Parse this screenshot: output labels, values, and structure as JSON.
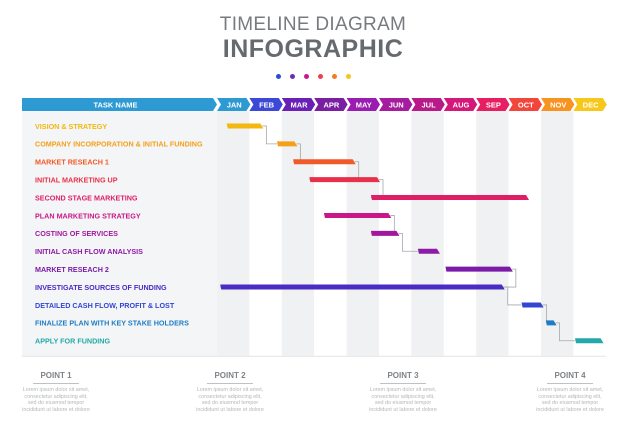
{
  "header": {
    "title_line1": "TIMELINE DIAGRAM",
    "title_line2": "INFOGRAPHIC",
    "dot_colors": [
      "#2f4bd6",
      "#6a2fb3",
      "#c31a8e",
      "#ee3e52",
      "#f17a2b",
      "#f5c51a"
    ]
  },
  "table": {
    "task_header": "TASK NAME",
    "header_color": "#2e9ad4",
    "months": [
      {
        "label": "JAN",
        "color": "#2e9ad4"
      },
      {
        "label": "FEB",
        "color": "#3b49d6"
      },
      {
        "label": "MAR",
        "color": "#6a1fb5"
      },
      {
        "label": "APR",
        "color": "#7b1fa2"
      },
      {
        "label": "MAY",
        "color": "#9a1cb0"
      },
      {
        "label": "JUN",
        "color": "#a51d9e"
      },
      {
        "label": "JUL",
        "color": "#b81a8a"
      },
      {
        "label": "AUG",
        "color": "#d4177a"
      },
      {
        "label": "SEP",
        "color": "#e81e63"
      },
      {
        "label": "OCT",
        "color": "#f2463d"
      },
      {
        "label": "NOV",
        "color": "#f79421"
      },
      {
        "label": "DEC",
        "color": "#f7c81b"
      }
    ],
    "tasks": [
      {
        "label": "VISION & STRATEGY",
        "color": "#f2b80f",
        "start": 1.3,
        "end": 2.4
      },
      {
        "label": "COMPANY INCORPORATION & INITIAL FUNDING",
        "color": "#f5a01a",
        "start": 2.85,
        "end": 3.45
      },
      {
        "label": "MARKET RESEACH 1",
        "color": "#f05a28",
        "start": 3.35,
        "end": 5.25
      },
      {
        "label": "INITIAL MARKETING UP",
        "color": "#e8304b",
        "start": 3.85,
        "end": 6.0
      },
      {
        "label": "SECOND STAGE MARKETING",
        "color": "#de1f66",
        "start": 5.75,
        "end": 10.6
      },
      {
        "label": "PLAN MARKETING STRATEGY",
        "color": "#c9178a",
        "start": 4.3,
        "end": 6.35
      },
      {
        "label": "COSTING OF SERVICES",
        "color": "#a3179e",
        "start": 5.75,
        "end": 6.6
      },
      {
        "label": "INITIAL CASH FLOW ANALYSIS",
        "color": "#8d1aa8",
        "start": 7.2,
        "end": 7.85
      },
      {
        "label": "MARKET RESEACH 2",
        "color": "#7a1ca8",
        "start": 8.05,
        "end": 10.1
      },
      {
        "label": "INVESTIGATE SOURCES OF FUNDING",
        "color": "#4a2bc4",
        "start": 1.1,
        "end": 9.85
      },
      {
        "label": "DETAILED CASH FLOW, PROFIT & LOST",
        "color": "#3346d2",
        "start": 10.4,
        "end": 11.05
      },
      {
        "label": "FINALIZE PLAN WITH KEY STAKE HOLDERS",
        "color": "#1f7cc4",
        "start": 11.15,
        "end": 11.45
      },
      {
        "label": "APPLY FOR FUNDING",
        "color": "#23a9a9",
        "start": 12.05,
        "end": 12.9
      }
    ]
  },
  "points": [
    {
      "title": "POINT 1",
      "body": "Lorem ipsum dolor sit amet,\nconsectetur adipiscing elit,\nsed do eiusmod tempor\nincididunt ut labore et dolore"
    },
    {
      "title": "POINT 2",
      "body": "Lorem ipsum dolor sit amet,\nconsectetur adipiscing elit,\nsed do eiusmod tempor\nincididunt ut labore et dolore"
    },
    {
      "title": "POINT 3",
      "body": "Lorem ipsum dolor sit amet,\nconsectetur adipiscing elit,\nsed do eiusmod tempor\nincididunt ut labore et dolore"
    },
    {
      "title": "POINT 4",
      "body": "Lorem ipsum dolor sit amet,\nconsectetur adipiscing elit,\nsed do eiusmod tempor\nincididunt ut labore et dolore"
    }
  ]
}
